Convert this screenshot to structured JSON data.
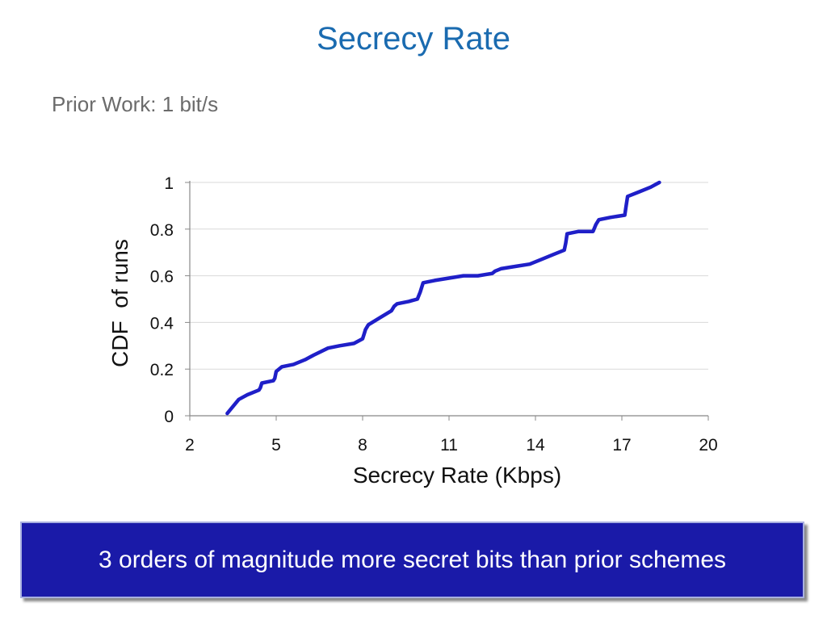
{
  "slide": {
    "title": "Secrecy Rate",
    "bullet": "Prior Work: 1 bit/s",
    "callout": "3 orders of magnitude more secret bits than prior schemes"
  },
  "colors": {
    "title": "#1a6bb0",
    "bullet": "#6b6b6b",
    "line": "#1f1fc8",
    "callout_bg": "#1a1aa8",
    "callout_text": "#ffffff",
    "grid": "#d9d9d9"
  },
  "chart_data": {
    "type": "line",
    "title": "",
    "xlabel": "Secrecy Rate (Kbps)",
    "ylabel": "CDF  of runs",
    "xlim": [
      2,
      20
    ],
    "ylim": [
      0,
      1
    ],
    "xticks": [
      2,
      5,
      8,
      11,
      14,
      17,
      20
    ],
    "yticks": [
      0,
      0.2,
      0.4,
      0.6,
      0.8,
      1
    ],
    "ytick_labels": [
      "0",
      "0.2",
      "0.4",
      "0.6",
      "0.8",
      "1"
    ],
    "grid": "horizontal",
    "series": [
      {
        "x": [
          3.3,
          3.5,
          3.7,
          4.0,
          4.4,
          4.45,
          4.5,
          4.9,
          4.95,
          5.0,
          5.2,
          5.6,
          6.0,
          6.3,
          6.8,
          7.2,
          7.7,
          8.0,
          8.05,
          8.1,
          8.2,
          8.6,
          9.0,
          9.1,
          9.2,
          9.6,
          9.9,
          10.0,
          10.1,
          10.5,
          11.0,
          11.5,
          12.0,
          12.5,
          12.6,
          12.8,
          13.3,
          13.8,
          14.2,
          14.6,
          15.0,
          15.05,
          15.1,
          15.5,
          16.0,
          16.1,
          16.2,
          16.6,
          17.1,
          17.15,
          17.2,
          17.6,
          18.0,
          18.3
        ],
        "y": [
          0.01,
          0.04,
          0.07,
          0.09,
          0.11,
          0.12,
          0.14,
          0.15,
          0.16,
          0.19,
          0.21,
          0.22,
          0.24,
          0.26,
          0.29,
          0.3,
          0.31,
          0.33,
          0.35,
          0.37,
          0.39,
          0.42,
          0.45,
          0.47,
          0.48,
          0.49,
          0.5,
          0.53,
          0.57,
          0.58,
          0.59,
          0.6,
          0.6,
          0.61,
          0.62,
          0.63,
          0.64,
          0.65,
          0.67,
          0.69,
          0.71,
          0.74,
          0.78,
          0.79,
          0.79,
          0.82,
          0.84,
          0.85,
          0.86,
          0.9,
          0.94,
          0.96,
          0.98,
          1.0
        ]
      }
    ]
  }
}
